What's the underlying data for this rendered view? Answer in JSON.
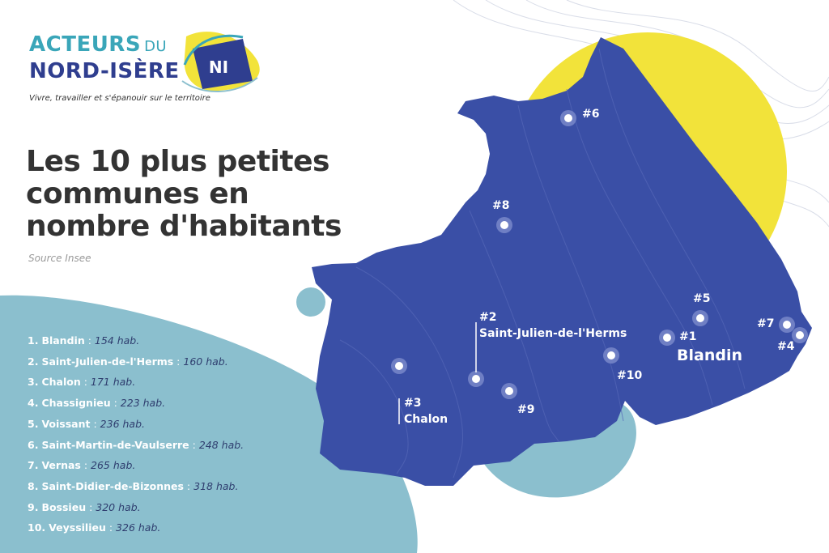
{
  "header": {
    "logo_line1": "ACTEURS",
    "logo_line1_small": "DU",
    "logo_line2": "NORD-ISÈRE",
    "logo_badge": "NI",
    "tagline": "Vivre, travailler et s'épanouir sur le territoire"
  },
  "title": "Les 10 plus petites communes en nombre d'habitants",
  "source": "Source Insee",
  "ranking": [
    {
      "rank": "1.",
      "name": "Blandin",
      "pop": "154 hab."
    },
    {
      "rank": "2.",
      "name": "Saint-Julien-de-l'Herms",
      "pop": "160 hab."
    },
    {
      "rank": "3.",
      "name": "Chalon",
      "pop": "171 hab."
    },
    {
      "rank": "4.",
      "name": "Chassignieu",
      "pop": "223 hab."
    },
    {
      "rank": "5.",
      "name": "Voissant",
      "pop": "236 hab."
    },
    {
      "rank": "6.",
      "name": "Saint-Martin-de-Vaulserre",
      "pop": "248 hab."
    },
    {
      "rank": "7.",
      "name": "Vernas",
      "pop": "265 hab."
    },
    {
      "rank": "8.",
      "name": "Saint-Didier-de-Bizonnes",
      "pop": "318 hab."
    },
    {
      "rank": "9.",
      "name": "Bossieu",
      "pop": "320 hab."
    },
    {
      "rank": "10.",
      "name": "Veyssilieu",
      "pop": "326 hab."
    }
  ],
  "map_labels": {
    "m1_rank": "#1",
    "m1_name": "Blandin",
    "m2_rank": "#2",
    "m2_name": "Saint-Julien-de-l'Herms",
    "m3_rank": "#3",
    "m3_name": "Chalon",
    "m4": "#4",
    "m5": "#5",
    "m6": "#6",
    "m7": "#7",
    "m8": "#8",
    "m9": "#9",
    "m10": "#10"
  },
  "colors": {
    "map_fill": "#3a4fa6",
    "yellow": "#f2e33a",
    "teal": "#8bbfce",
    "title": "#333333",
    "logo_teal": "#3aa6b9",
    "logo_navy": "#2f3e8f"
  }
}
